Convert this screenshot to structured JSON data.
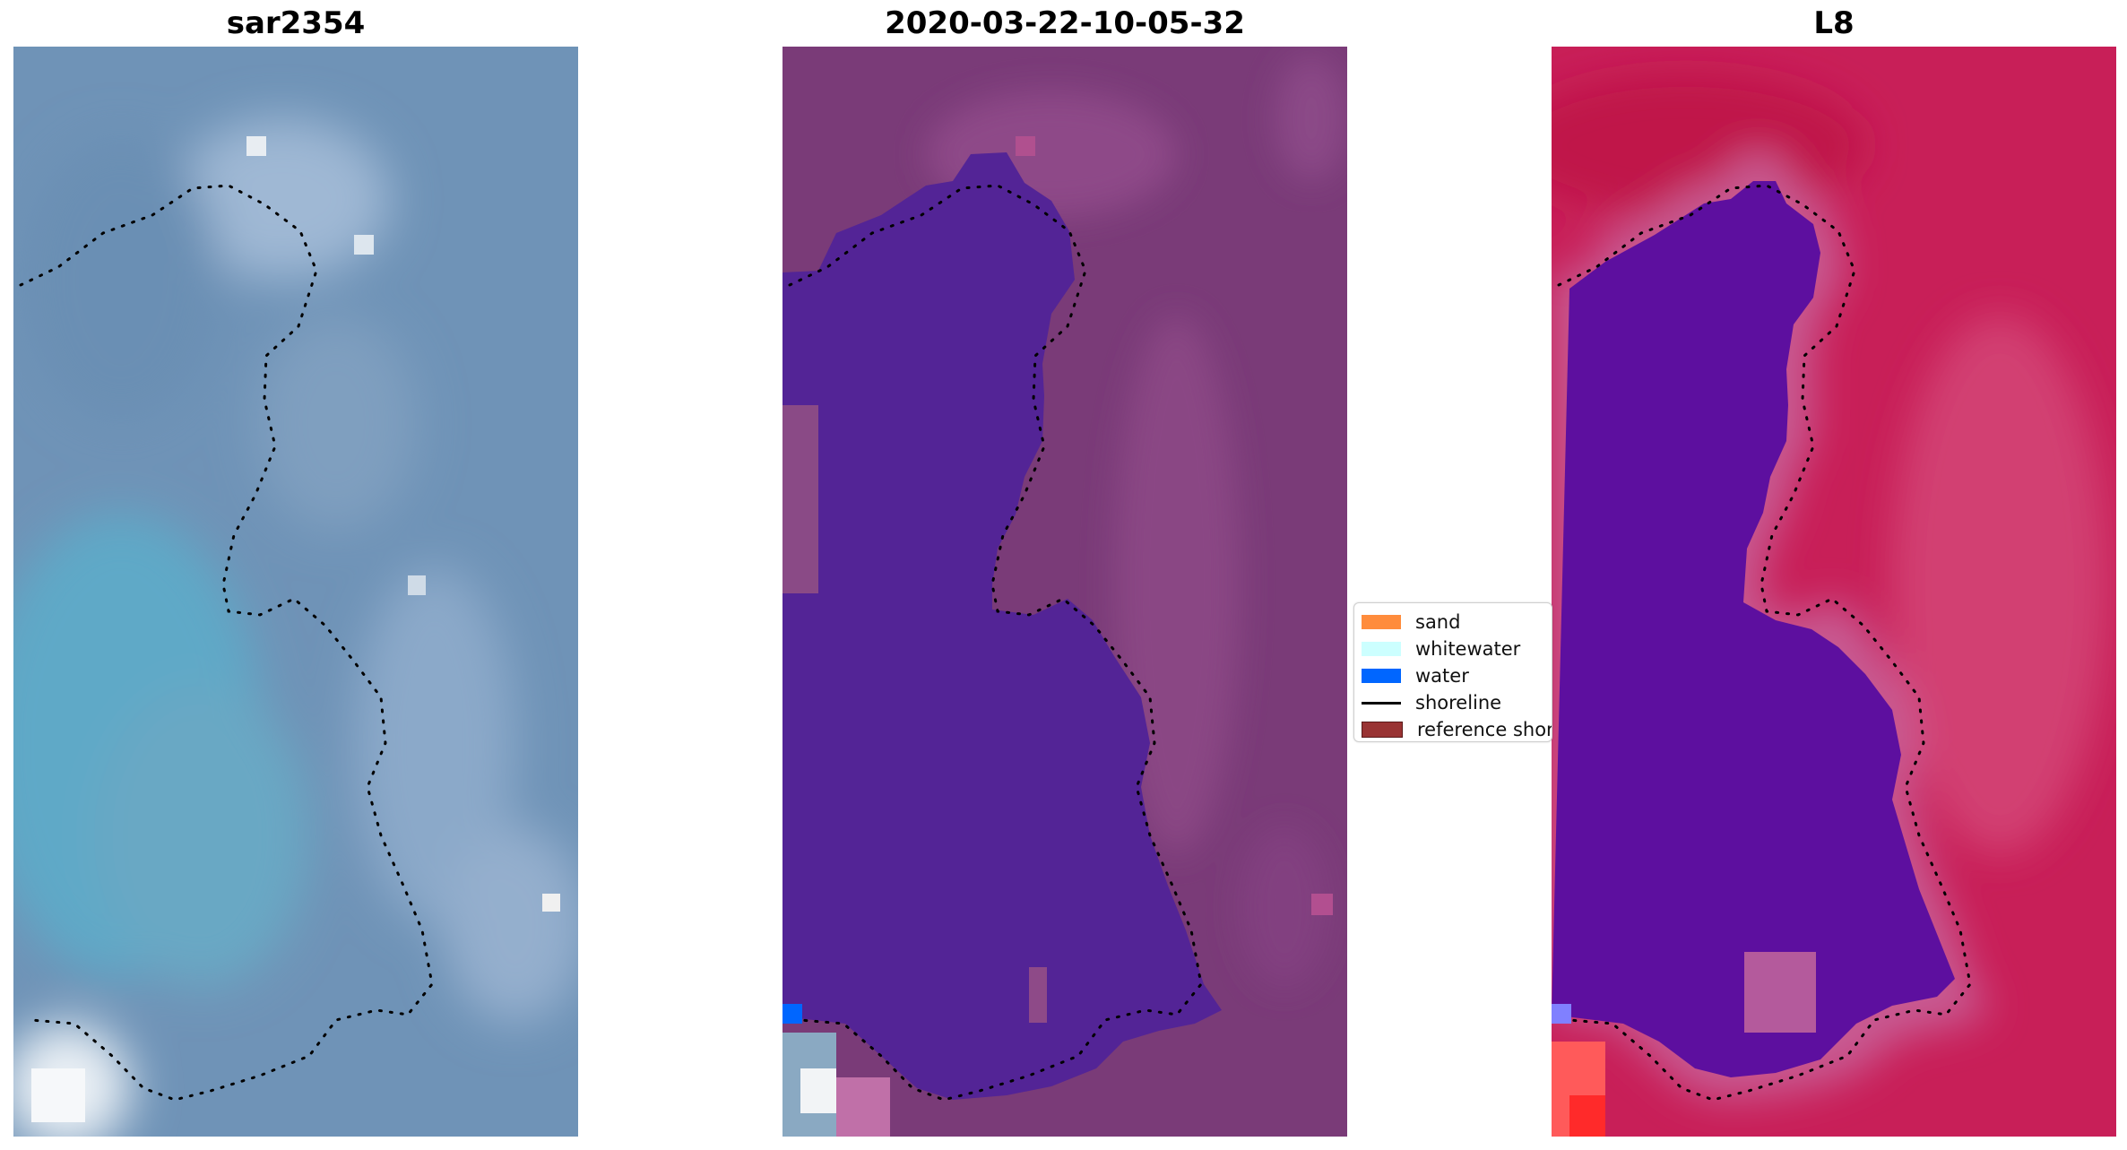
{
  "panels": {
    "left": {
      "title": "sar2354"
    },
    "mid": {
      "title": "2020-03-22-10-05-32"
    },
    "right": {
      "title": "L8"
    }
  },
  "legend": {
    "items": [
      {
        "label": "sand",
        "color": "#ff8c3c"
      },
      {
        "label": "whitewater",
        "color": "#ccffff"
      },
      {
        "label": "water",
        "color": "#0066ff"
      },
      {
        "label": "shoreline",
        "color": "#000000"
      },
      {
        "label": "reference shor",
        "color": "#993333"
      }
    ]
  },
  "colors": {
    "rgb_base": "#6f93b7",
    "rgb_water": "#5fa9c7",
    "classified_bg": "#7a3b78",
    "classified_water": "#532496",
    "swir_bg": "#c81f58",
    "swir_water": "#5d0f9f",
    "shoreline_dots": "#000000"
  }
}
